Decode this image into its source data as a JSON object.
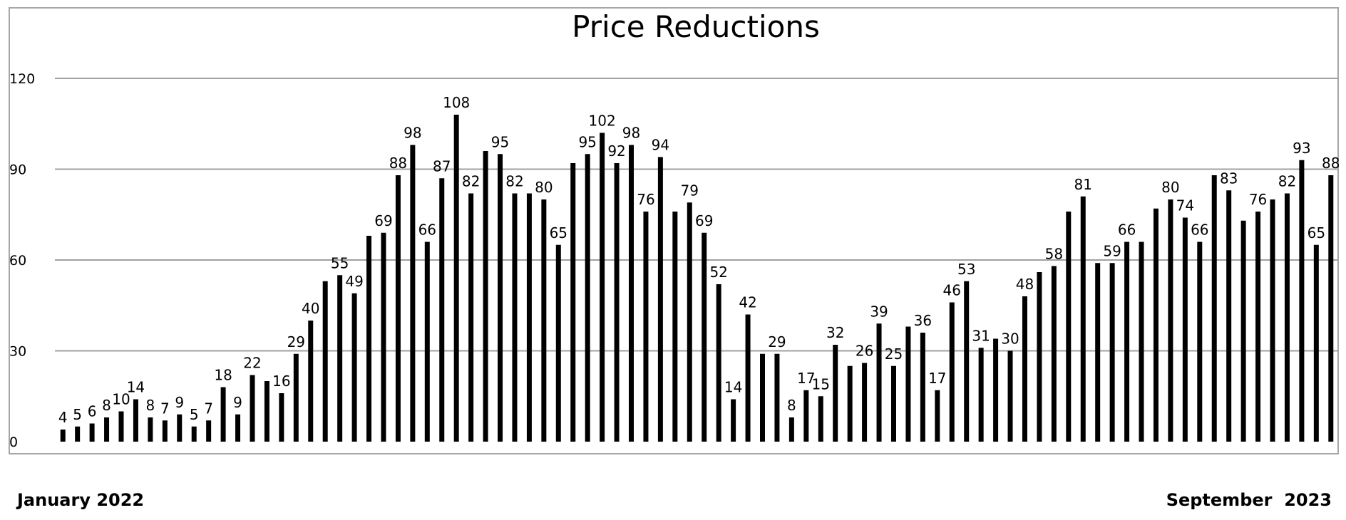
{
  "chart_data": {
    "type": "bar",
    "title": "Price Reductions",
    "xlabel": "",
    "ylabel": "",
    "ylim": [
      0,
      120
    ],
    "yticks": [
      "0",
      "30",
      "60",
      "90",
      "120"
    ],
    "grid": true,
    "values": [
      4,
      5,
      6,
      8,
      10,
      14,
      8,
      7,
      9,
      5,
      7,
      18,
      9,
      22,
      20,
      16,
      29,
      40,
      53,
      55,
      49,
      68,
      69,
      88,
      98,
      66,
      87,
      108,
      82,
      96,
      95,
      82,
      82,
      80,
      65,
      92,
      95,
      102,
      92,
      98,
      76,
      94,
      76,
      79,
      69,
      52,
      14,
      42,
      29,
      29,
      8,
      17,
      15,
      32,
      25,
      26,
      39,
      25,
      38,
      36,
      17,
      46,
      53,
      31,
      34,
      30,
      48,
      56,
      58,
      76,
      81,
      59,
      59,
      66,
      66,
      77,
      80,
      74,
      66,
      88,
      83,
      73,
      76,
      80,
      82,
      93,
      65,
      88
    ],
    "labels": [
      "4",
      "5",
      "6",
      "8",
      "10",
      "14",
      "8",
      "7",
      "9",
      "5",
      "7",
      "18",
      "9",
      "22",
      "",
      "16",
      "29",
      "40",
      "",
      "55",
      "49",
      "",
      "69",
      "88",
      "98",
      "66",
      "87",
      "108",
      "82",
      "",
      "95",
      "82",
      "",
      "80",
      "65",
      "",
      "95",
      "102",
      "92",
      "98",
      "76",
      "94",
      "",
      "79",
      "69",
      "52",
      "14",
      "42",
      "",
      "29",
      "8",
      "17",
      "15",
      "32",
      "",
      "26",
      "39",
      "25",
      "",
      "36",
      "17",
      "46",
      "53",
      "31",
      "",
      "30",
      "48",
      "",
      "58",
      "",
      "81",
      "",
      "59",
      "66",
      "",
      "",
      "80",
      "74",
      "66",
      "",
      "83",
      "",
      "76",
      "",
      "82",
      "93",
      "65",
      "88"
    ],
    "colors": {
      "bar": "#000000",
      "grid": "#a0a0a0",
      "frame": "#a6a6a6"
    }
  },
  "footer": {
    "start_label": "January 2022",
    "end_label": "September  2023"
  }
}
